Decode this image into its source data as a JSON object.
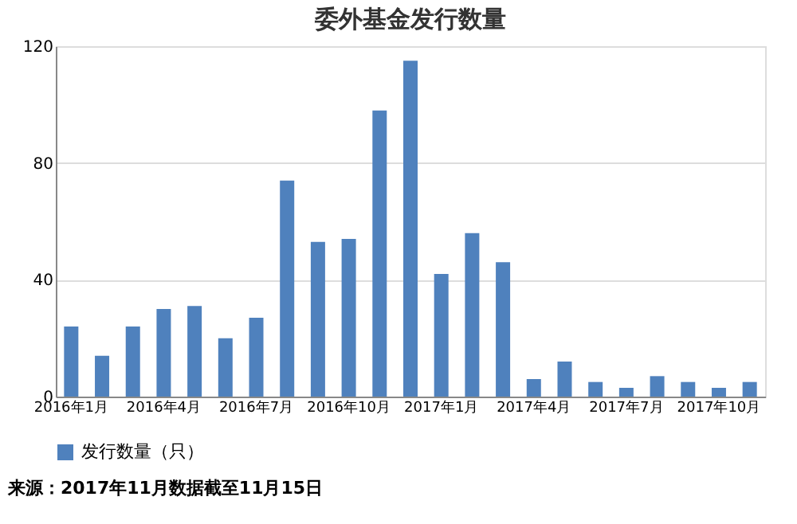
{
  "chart_data": {
    "type": "bar",
    "title": "委外基金发行数量",
    "categories": [
      "2016年1月",
      null,
      null,
      "2016年4月",
      null,
      null,
      "2016年7月",
      null,
      null,
      "2016年10月",
      null,
      null,
      "2017年1月",
      null,
      null,
      "2017年4月",
      null,
      null,
      "2017年7月",
      null,
      null,
      "2017年10月",
      null
    ],
    "series": [
      {
        "name": "发行数量（只）",
        "color": "#4f81bd",
        "values": [
          24,
          14,
          24,
          30,
          31,
          20,
          27,
          74,
          53,
          54,
          98,
          115,
          42,
          56,
          46,
          6,
          12,
          5,
          3,
          7,
          5,
          3,
          5
        ]
      }
    ],
    "ylim": [
      0,
      120
    ],
    "yticks": [
      0,
      40,
      80,
      120
    ],
    "grid": "y",
    "legend": "bottom",
    "annotations": [
      "来源：2017年11月数据截至11月15日"
    ]
  }
}
